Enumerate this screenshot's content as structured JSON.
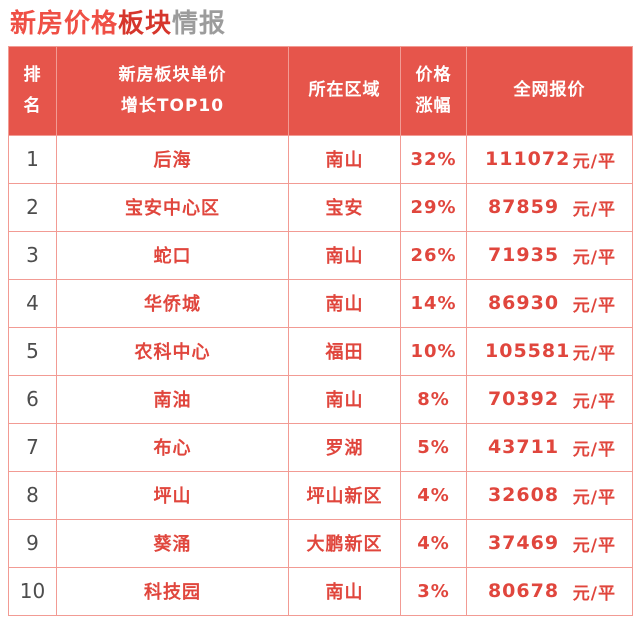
{
  "title": {
    "part1": "新房价格",
    "part2": "板块",
    "part3": "情报"
  },
  "colors": {
    "header_bg": "#e6554b",
    "data_text_red": "#e0463d",
    "border": "#f29b94",
    "rank_text": "#4d4d4d",
    "title_red": "#ef4f45",
    "title_dark_red": "#d6362c",
    "title_gray": "#9c9c9c"
  },
  "chart_data": {
    "type": "table",
    "title": "新房价格板块情报",
    "columns": [
      "排\n名",
      "新房板块单价\n增长TOP10",
      "所在区域",
      "价格\n涨幅",
      "全网报价"
    ],
    "unit": "元/平",
    "rows": [
      {
        "rank": 1,
        "name": "后海",
        "region": "南山",
        "growth_pct": 32,
        "price": 111072
      },
      {
        "rank": 2,
        "name": "宝安中心区",
        "region": "宝安",
        "growth_pct": 29,
        "price": 87859
      },
      {
        "rank": 3,
        "name": "蛇口",
        "region": "南山",
        "growth_pct": 26,
        "price": 71935
      },
      {
        "rank": 4,
        "name": "华侨城",
        "region": "南山",
        "growth_pct": 14,
        "price": 86930
      },
      {
        "rank": 5,
        "name": "农科中心",
        "region": "福田",
        "growth_pct": 10,
        "price": 105581
      },
      {
        "rank": 6,
        "name": "南油",
        "region": "南山",
        "growth_pct": 8,
        "price": 70392
      },
      {
        "rank": 7,
        "name": "布心",
        "region": "罗湖",
        "growth_pct": 5,
        "price": 43711
      },
      {
        "rank": 8,
        "name": "坪山",
        "region": "坪山新区",
        "growth_pct": 4,
        "price": 32608
      },
      {
        "rank": 9,
        "name": "葵涌",
        "region": "大鹏新区",
        "growth_pct": 4,
        "price": 37469
      },
      {
        "rank": 10,
        "name": "科技园",
        "region": "南山",
        "growth_pct": 3,
        "price": 80678
      }
    ]
  }
}
